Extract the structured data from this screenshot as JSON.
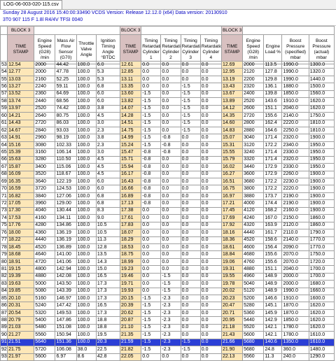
{
  "tab": {
    "label": "LOG-06-003-020-115.csv"
  },
  "info": {
    "line1": "Sunday 28 August 2016 15:40:00:33490 VCDS Version: Release 12.12.0 (x64) Data version: 20130910",
    "line2": "3T0 907 115 F   1.8l R4/4V TFSI     0040"
  },
  "header": {
    "blocks": [
      "BLOCK 3",
      "BLOCK 3",
      "BLOCK 3"
    ],
    "cols": [
      "TIME STAMP",
      "Engine Speed (G28) /min",
      "Mass Air Flow Sensor (G70)",
      "Throttle Valve Angle",
      "Ignition Timing Angle °BTDC",
      "TIME STAMP",
      "Timing Retardation Cylinder 1",
      "Timing Retardation Cylinder 2",
      "Timing Retardation Cylinder 3",
      "Timing Retardation Cylinder 4",
      "TIME STAMP",
      "Engine Speed (G28) /min",
      "Engine Load %",
      "Boost Pressure (specified) mbar",
      "Boost Pressure (actual) mbar"
    ]
  },
  "selected_row": 91,
  "rows": [
    [
      53,
      "12.54",
      "2000",
      "44.42",
      "100.0",
      "6.0",
      "12.61",
      "0.0",
      "0.0",
      "0.0",
      "0.0",
      "12.69",
      "2000",
      "113.5",
      "1990.0",
      "1300.0"
    ],
    [
      54,
      "12.77",
      "2000",
      "47.78",
      "100.0",
      "5.3",
      "12.85",
      "0.0",
      "0.0",
      "0.0",
      "0.0",
      "12.95",
      "2120",
      "127.8",
      "1990.0",
      "1320.0"
    ],
    [
      55,
      "13.03",
      "2160",
      "52.25",
      "100.0",
      "5.3",
      "13.11",
      "0.0",
      "0.0",
      "0.0",
      "0.0",
      "13.19",
      "2200",
      "129.8",
      "1990.0",
      "1440.0"
    ],
    [
      56,
      "13.27",
      "2240",
      "59.11",
      "100.0",
      "6.8",
      "13.35",
      "0.0",
      "0.0",
      "-1.5",
      "0.0",
      "13.43",
      "2320",
      "136.1",
      "1880.0",
      "1500.0"
    ],
    [
      57,
      "13.52",
      "2360",
      "64.69",
      "100.0",
      "6.0",
      "13.60",
      "-1.5",
      "0.0",
      "-1.5",
      "0.0",
      "13.67",
      "2400",
      "139.8",
      "1850.0",
      "1560.0"
    ],
    [
      58,
      "13.74",
      "2440",
      "68.56",
      "100.0",
      "6.0",
      "13.82",
      "-1.5",
      "0.0",
      "-1.5",
      "0.0",
      "13.89",
      "2520",
      "143.6",
      "1910.0",
      "1620.0"
    ],
    [
      59,
      "13.97",
      "2520",
      "74.42",
      "100.0",
      "3.8",
      "14.07",
      "-1.5",
      "0.0",
      "-1.5",
      "0.0",
      "14.12",
      "2600",
      "151.1",
      "2040.0",
      "1620.0"
    ],
    [
      60,
      "14.21",
      "2640",
      "80.75",
      "100.0",
      "4.5",
      "14.28",
      "-1.5",
      "0.0",
      "-1.5",
      "0.0",
      "14.35",
      "2720",
      "155.6",
      "2140.0",
      "1750.0"
    ],
    [
      61,
      "14.43",
      "2720",
      "86.03",
      "100.0",
      "3.0",
      "14.51",
      "-1.5",
      "0.0",
      "-1.5",
      "0.0",
      "14.60",
      "2800",
      "162.4",
      "2220.0",
      "1810.0"
    ],
    [
      62,
      "14.67",
      "2840",
      "93.03",
      "100.0",
      "2.3",
      "14.75",
      "-1.5",
      "0.0",
      "-1.5",
      "0.0",
      "14.83",
      "2880",
      "164.6",
      "2250.0",
      "1810.0"
    ],
    [
      63,
      "14.91",
      "2960",
      "98.19",
      "100.0",
      "3.8",
      "14.99",
      "-1.5",
      "-0.8",
      "0.0",
      "0.0",
      "15.07",
      "3040",
      "171.4",
      "2320.0",
      "1900.0"
    ],
    [
      64,
      "15.16",
      "3080",
      "102.33",
      "100.0",
      "2.3",
      "15.24",
      "-1.5",
      "-0.8",
      "0.0",
      "0.0",
      "15.31",
      "3120",
      "172.2",
      "2340.0",
      "1950.0"
    ],
    [
      65,
      "15.39",
      "3160",
      "106.14",
      "100.0",
      "3.0",
      "15.47",
      "-0.8",
      "-0.8",
      "0.0",
      "0.0",
      "15.55",
      "3240",
      "171.4",
      "2330.0",
      "1950.0"
    ],
    [
      66,
      "15.63",
      "3280",
      "110.50",
      "100.0",
      "4.5",
      "15.71",
      "-0.8",
      "0.0",
      "0.0",
      "0.0",
      "15.79",
      "3320",
      "171.4",
      "2320.0",
      "1950.0"
    ],
    [
      67,
      "15.87",
      "3400",
      "115.06",
      "100.0",
      "4.5",
      "15.94",
      "-0.8",
      "0.0",
      "0.0",
      "0.0",
      "16.02",
      "3440",
      "172.9",
      "2330.0",
      "1950.0"
    ],
    [
      68,
      "16.09",
      "3520",
      "118.67",
      "100.0",
      "4.5",
      "16.17",
      "-0.8",
      "0.0",
      "0.0",
      "0.0",
      "16.27",
      "3600",
      "172.9",
      "2260.0",
      "1900.0"
    ],
    [
      69,
      "16.35",
      "3640",
      "122.19",
      "100.0",
      "6.0",
      "16.43",
      "-0.8",
      "0.0",
      "0.0",
      "0.0",
      "16.51",
      "3680",
      "172.2",
      "2230.0",
      "1900.0"
    ],
    [
      70,
      "16.59",
      "3720",
      "124.53",
      "100.0",
      "6.0",
      "16.66",
      "-0.8",
      "0.0",
      "0.0",
      "0.0",
      "16.75",
      "3800",
      "172.2",
      "2220.0",
      "1900.0"
    ],
    [
      71,
      "16.82",
      "3840",
      "127.06",
      "100.0",
      "6.8",
      "16.89",
      "-0.8",
      "0.0",
      "0.0",
      "0.0",
      "16.97",
      "3880",
      "173.7",
      "2190.0",
      "1900.0"
    ],
    [
      72,
      "17.05",
      "3960",
      "129.00",
      "100.0",
      "6.8",
      "17.13",
      "-0.8",
      "0.0",
      "0.0",
      "0.0",
      "17.21",
      "4000",
      "174.4",
      "2190.0",
      "1900.0"
    ],
    [
      73,
      "17.30",
      "4040",
      "130.44",
      "100.0",
      "8.3",
      "17.38",
      "0.0",
      "0.0",
      "0.0",
      "0.0",
      "17.45",
      "4120",
      "168.2",
      "2160.0",
      "1900.0"
    ],
    [
      74,
      "17.53",
      "4160",
      "134.11",
      "100.0",
      "9.0",
      "17.61",
      "0.0",
      "0.0",
      "0.0",
      "0.0",
      "17.69",
      "4240",
      "167.0",
      "2150.0",
      "1860.0"
    ],
    [
      75,
      "17.76",
      "4280",
      "134.86",
      "100.0",
      "10.5",
      "17.83",
      "0.0",
      "0.0",
      "0.0",
      "0.0",
      "17.92",
      "4320",
      "163.9",
      "2120.0",
      "1860.0"
    ],
    [
      76,
      "18.00",
      "4360",
      "136.19",
      "100.0",
      "10.5",
      "18.07",
      "0.0",
      "0.0",
      "0.0",
      "0.0",
      "18.16",
      "4440",
      "161.7",
      "2110.0",
      "1790.0"
    ],
    [
      77,
      "18.22",
      "4440",
      "136.19",
      "100.0",
      "11.3",
      "18.29",
      "0.0",
      "0.0",
      "0.0",
      "0.0",
      "18.36",
      "4520",
      "158.6",
      "2140.0",
      "1770.0"
    ],
    [
      78,
      "18.45",
      "4520",
      "136.89",
      "100.0",
      "12.8",
      "18.53",
      "0.0",
      "0.0",
      "0.0",
      "0.0",
      "18.61",
      "4600",
      "156.4",
      "2090.0",
      "1770.0"
    ],
    [
      79,
      "18.68",
      "4640",
      "141.00",
      "100.0",
      "13.5",
      "18.75",
      "0.0",
      "0.0",
      "0.0",
      "0.0",
      "18.84",
      "4680",
      "155.6",
      "2070.0",
      "1750.0"
    ],
    [
      80,
      "18.91",
      "4720",
      "141.06",
      "100.0",
      "14.3",
      "18.99",
      "0.0",
      "0.0",
      "0.0",
      "0.0",
      "19.06",
      "4760",
      "155.6",
      "2070.0",
      "1720.0"
    ],
    [
      81,
      "19.15",
      "4800",
      "142.94",
      "100.0",
      "15.0",
      "19.23",
      "0.0",
      "0.0",
      "0.0",
      "0.0",
      "19.31",
      "4880",
      "151.1",
      "2040.0",
      "1700.0"
    ],
    [
      82,
      "19.39",
      "4880",
      "142.08",
      "100.0",
      "16.5",
      "19.46",
      "0.0",
      "-1.5",
      "0.0",
      "0.0",
      "19.55",
      "4960",
      "148.9",
      "2000.0",
      "1700.0"
    ],
    [
      83,
      "19.63",
      "5000",
      "143.50",
      "100.0",
      "17.3",
      "19.71",
      "0.0",
      "-1.5",
      "0.0",
      "0.0",
      "19.78",
      "5040",
      "148.9",
      "2000.0",
      "1680.0"
    ],
    [
      84,
      "19.85",
      "5080",
      "143.39",
      "100.0",
      "17.3",
      "19.93",
      "0.0",
      "-1.5",
      "0.0",
      "0.0",
      "20.02",
      "5120",
      "148.9",
      "1990.0",
      "1660.0"
    ],
    [
      85,
      "20.10",
      "5160",
      "146.97",
      "100.0",
      "17.3",
      "20.15",
      "-1.5",
      "-2.3",
      "0.0",
      "0.0",
      "20.23",
      "5200",
      "146.6",
      "1910.0",
      "1600.0"
    ],
    [
      86,
      "20.31",
      "5240",
      "147.42",
      "100.0",
      "16.5",
      "20.39",
      "-1.5",
      "-2.3",
      "0.0",
      "0.0",
      "20.47",
      "5280",
      "145.1",
      "1870.0",
      "1620.0"
    ],
    [
      87,
      "20.54",
      "5320",
      "149.53",
      "100.0",
      "17.3",
      "20.62",
      "-1.5",
      "-2.3",
      "0.0",
      "0.0",
      "20.71",
      "5360",
      "145.9",
      "1870.0",
      "1620.0"
    ],
    [
      88,
      "20.79",
      "5400",
      "147.86",
      "100.0",
      "18.8",
      "20.87",
      "-1.5",
      "-2.3",
      "0.0",
      "0.0",
      "20.95",
      "5440",
      "142.9",
      "1850.0",
      "1620.0"
    ],
    [
      89,
      "21.03",
      "5480",
      "151.08",
      "100.0",
      "18.8",
      "21.10",
      "-1.5",
      "-2.3",
      "0.0",
      "0.0",
      "21.18",
      "5520",
      "142.1",
      "1780.0",
      "1620.0"
    ],
    [
      90,
      "21.27",
      "5560",
      "150.94",
      "100.0",
      "19.5",
      "21.35",
      "-1.5",
      "-2.3",
      "0.0",
      "0.0",
      "21.43",
      "5600",
      "142.1",
      "1780.0",
      "1610.0"
    ],
    [
      91,
      "21.51",
      "5640",
      "151.36",
      "100.0",
      "20.3",
      "21.59",
      "-1.5",
      "-2.3",
      "-1.5",
      "0.0",
      "21.66",
      "5680",
      "140.6",
      "1350.0",
      "1610.0"
    ],
    [
      92,
      "21.75",
      "5720",
      "106.08",
      "38.0",
      "22.5",
      "21.82",
      "-1.5",
      "-2.3",
      "-1.5",
      "0.0",
      "21.90",
      "5680",
      "24.8",
      "360.0",
      "1480.0"
    ],
    [
      93,
      "21.97",
      "5600",
      "6.97",
      "8.6",
      "42.8",
      "22.05",
      "0.0",
      "0.0",
      "0.0",
      "0.0",
      "22.13",
      "5560",
      "11.3",
      "240.0",
      "1290.0"
    ]
  ]
}
